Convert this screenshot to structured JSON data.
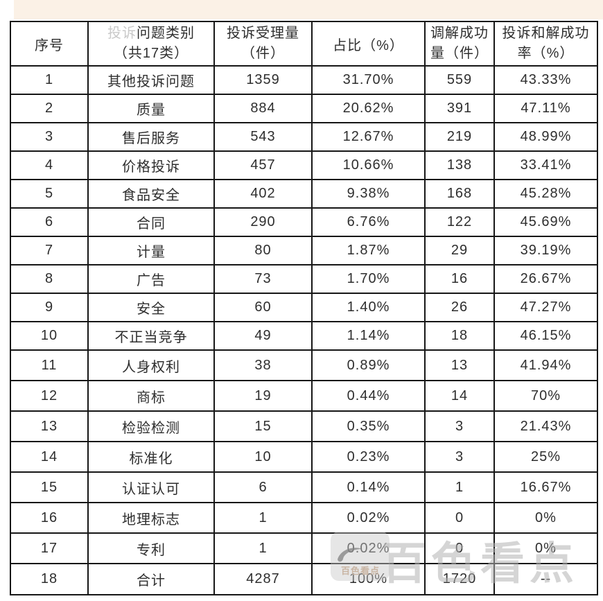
{
  "page": {
    "background_color": "#ffffff",
    "top_strip_color": "#fbf1e6",
    "border_color": "#161616"
  },
  "header": {
    "col1": "序号",
    "col2_faded": "投诉",
    "col2_rest": "问题类别",
    "col2_line2": "（共17类）",
    "col3_line1": "投诉受理量",
    "col3_line2": "（件）",
    "col4": "占比（%）",
    "col5_line1": "调解成功",
    "col5_line2": "量（件）",
    "col6_line1": "投诉和解成功",
    "col6_line2": "率（%）"
  },
  "chart_data": {
    "type": "table",
    "title": "",
    "columns": [
      "序号",
      "投诉问题类别（共17类）",
      "投诉受理量（件）",
      "占比（%）",
      "调解成功量（件）",
      "投诉和解成功率（%）"
    ],
    "rows": [
      [
        "1",
        "其他投诉问题",
        "1359",
        "31.70%",
        "559",
        "43.33%"
      ],
      [
        "2",
        "质量",
        "884",
        "20.62%",
        "391",
        "47.11%"
      ],
      [
        "3",
        "售后服务",
        "543",
        "12.67%",
        "219",
        "48.99%"
      ],
      [
        "4",
        "价格投诉",
        "457",
        "10.66%",
        "138",
        "33.41%"
      ],
      [
        "5",
        "食品安全",
        "402",
        "9.38%",
        "168",
        "45.28%"
      ],
      [
        "6",
        "合同",
        "290",
        "6.76%",
        "122",
        "45.69%"
      ],
      [
        "7",
        "计量",
        "80",
        "1.87%",
        "29",
        "39.19%"
      ],
      [
        "8",
        "广告",
        "73",
        "1.70%",
        "16",
        "26.67%"
      ],
      [
        "9",
        "安全",
        "60",
        "1.40%",
        "26",
        "47.27%"
      ],
      [
        "10",
        "不正当竞争",
        "49",
        "1.14%",
        "18",
        "46.15%"
      ],
      [
        "11",
        "人身权利",
        "38",
        "0.89%",
        "13",
        "41.94%"
      ],
      [
        "12",
        "商标",
        "19",
        "0.44%",
        "14",
        "70%"
      ],
      [
        "13",
        "检验检测",
        "15",
        "0.35%",
        "3",
        "21.43%"
      ],
      [
        "14",
        "标准化",
        "10",
        "0.23%",
        "3",
        "25%"
      ],
      [
        "15",
        "认证认可",
        "6",
        "0.14%",
        "1",
        "16.67%"
      ],
      [
        "16",
        "地理标志",
        "1",
        "0.02%",
        "0",
        "0%"
      ],
      [
        "17",
        "专利",
        "1",
        "0.02%",
        "0",
        "0%"
      ],
      [
        "18",
        "合计",
        "4287",
        "100%",
        "1720",
        "--"
      ]
    ]
  },
  "watermark": {
    "big_text": "百色看点",
    "logo_text": "百色看点"
  }
}
